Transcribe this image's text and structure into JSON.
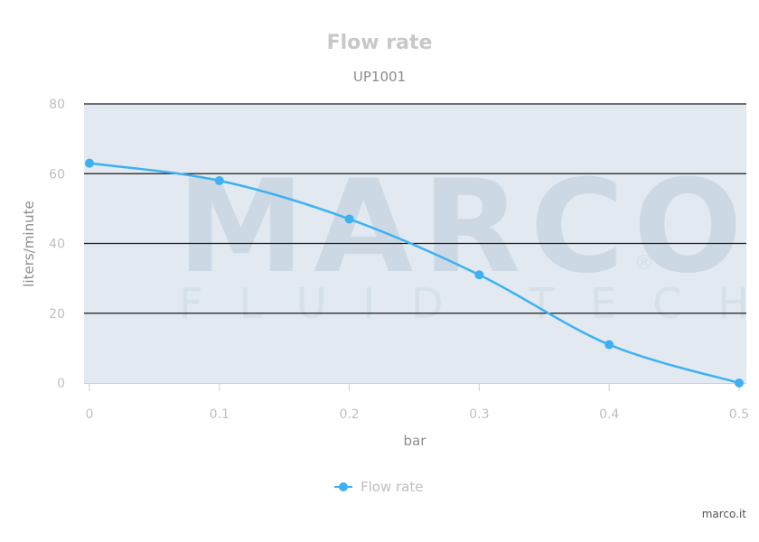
{
  "chart_data": {
    "type": "line",
    "title": "Flow rate",
    "subtitle": "UP1001",
    "xlabel": "bar",
    "ylabel": "liters/minute",
    "xlim": [
      0,
      0.5
    ],
    "ylim": [
      0,
      80
    ],
    "x_ticks": [
      "0",
      "0.1",
      "0.2",
      "0.3",
      "0.4",
      "0.5"
    ],
    "y_ticks": [
      "0",
      "20",
      "40",
      "60",
      "80"
    ],
    "grid": true,
    "legend_position": "bottom-center",
    "series": [
      {
        "name": "Flow rate",
        "color": "#3db1f2",
        "x": [
          0,
          0.1,
          0.2,
          0.3,
          0.4,
          0.5
        ],
        "values": [
          63,
          58,
          47,
          31,
          11,
          0
        ]
      }
    ]
  },
  "watermark": {
    "brand": "MARCO",
    "tagline": "FLUID TECH",
    "mark": "®"
  },
  "credit": "marco.it"
}
